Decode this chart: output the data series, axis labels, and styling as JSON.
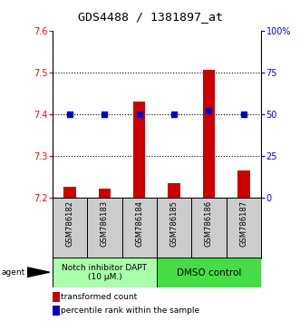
{
  "title": "GDS4488 / 1381897_at",
  "categories": [
    "GSM786182",
    "GSM786183",
    "GSM786184",
    "GSM786185",
    "GSM786186",
    "GSM786187"
  ],
  "bar_values": [
    7.225,
    7.222,
    7.43,
    7.235,
    7.505,
    7.265
  ],
  "percentile_values": [
    50,
    50,
    50,
    50,
    52,
    50
  ],
  "ylim_left": [
    7.2,
    7.6
  ],
  "ylim_right": [
    0,
    100
  ],
  "yticks_left": [
    7.2,
    7.3,
    7.4,
    7.5,
    7.6
  ],
  "yticks_right": [
    0,
    25,
    50,
    75,
    100
  ],
  "bar_color": "#cc0000",
  "dot_color": "#0000cc",
  "bar_width": 0.35,
  "group1_label": "Notch inhibitor DAPT\n(10 μM.)",
  "group2_label": "DMSO control",
  "group1_bg": "#aaffaa",
  "group2_bg": "#44dd44",
  "sample_bg": "#cccccc",
  "legend_bar_label": "transformed count",
  "legend_dot_label": "percentile rank within the sample",
  "agent_label": "agent",
  "title_fontsize": 9.5,
  "tick_fontsize": 7,
  "cat_fontsize": 6,
  "group_fontsize": 6.5,
  "legend_fontsize": 6.5
}
